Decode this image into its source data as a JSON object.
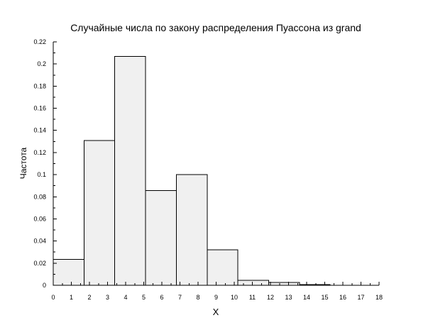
{
  "chart_data": {
    "type": "bar",
    "title": "Случайные числа по закону распределения Пуассона из grand",
    "xlabel": "X",
    "ylabel": "Частота",
    "xlim": [
      0,
      18
    ],
    "ylim": [
      0,
      0.22
    ],
    "x_ticks": [
      "0",
      "1",
      "2",
      "3",
      "4",
      "5",
      "6",
      "7",
      "8",
      "9",
      "10",
      "11",
      "12",
      "13",
      "14",
      "15",
      "16",
      "17",
      "18"
    ],
    "y_ticks": [
      "0",
      "0.02",
      "0.04",
      "0.06",
      "0.08",
      "0.1",
      "0.12",
      "0.14",
      "0.16",
      "0.18",
      "0.2",
      "0.22"
    ],
    "bins": [
      {
        "from": 0.0,
        "to": 1.7,
        "value": 0.0235
      },
      {
        "from": 1.7,
        "to": 3.4,
        "value": 0.131
      },
      {
        "from": 3.4,
        "to": 5.1,
        "value": 0.207
      },
      {
        "from": 5.1,
        "to": 6.8,
        "value": 0.0855
      },
      {
        "from": 6.8,
        "to": 8.5,
        "value": 0.1
      },
      {
        "from": 8.5,
        "to": 10.2,
        "value": 0.032
      },
      {
        "from": 10.2,
        "to": 11.9,
        "value": 0.0045
      },
      {
        "from": 11.9,
        "to": 13.6,
        "value": 0.0025
      },
      {
        "from": 13.6,
        "to": 15.3,
        "value": 0.0008
      },
      {
        "from": 15.3,
        "to": 17.0,
        "value": 0.0
      },
      {
        "from": 17.0,
        "to": 18.0,
        "value": 0.0
      }
    ],
    "bar_fill": "#f0f0f0",
    "bar_stroke": "#000000",
    "grid": false,
    "legend": "none"
  }
}
